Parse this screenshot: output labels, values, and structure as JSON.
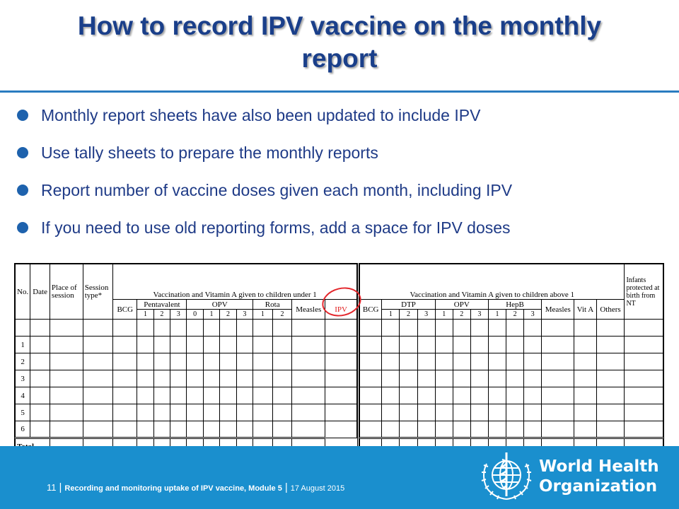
{
  "title": "How to record IPV vaccine on the monthly report",
  "bullets": [
    "Monthly report sheets have also been updated to include IPV",
    "Use tally sheets to prepare the monthly reports",
    "Report number of vaccine doses given each month, including IPV",
    "If you need to use old reporting forms, add a space for IPV doses"
  ],
  "form": {
    "left": {
      "no": "No.",
      "date": "Date",
      "place": "Place of session",
      "session_type": "Session type*",
      "group_title": "Vaccination and Vitamin A given to children under 1",
      "bcg": "BCG",
      "pentavalent": "Pentavalent",
      "opv": "OPV",
      "rota": "Rota",
      "measles": "Measles",
      "ipv": "IPV",
      "pentavalent_doses": [
        "1",
        "2",
        "3"
      ],
      "opv_doses": [
        "0",
        "1",
        "2",
        "3"
      ],
      "rota_doses": [
        "1",
        "2"
      ],
      "rows": [
        "1",
        "2",
        "3",
        "4",
        "5",
        "6"
      ],
      "total": "Total"
    },
    "right": {
      "group_title": "Vaccination and Vitamin A given to children above 1",
      "bcg": "BCG",
      "dtp": "DTP",
      "opv": "OPV",
      "hepb": "HepB",
      "measles": "Measles",
      "vit_a": "Vit A",
      "others": "Others",
      "infants": "Infants protected at birth from NT",
      "dtp_doses": [
        "1",
        "2",
        "3"
      ],
      "opv_doses": [
        "1",
        "2",
        "3"
      ],
      "hepb_doses": [
        "1",
        "2",
        "3"
      ]
    }
  },
  "footer": {
    "page": "11",
    "module": "Recording and monitoring uptake of IPV vaccine, Module 5",
    "date": "17 August 2015"
  },
  "org": {
    "line1": "World Health",
    "line2": "Organization"
  },
  "colors": {
    "title": "#1a3f8a",
    "bullet_text": "#1f3b87",
    "footer": "#1a8fce",
    "ipv_mark": "#e3262b"
  }
}
